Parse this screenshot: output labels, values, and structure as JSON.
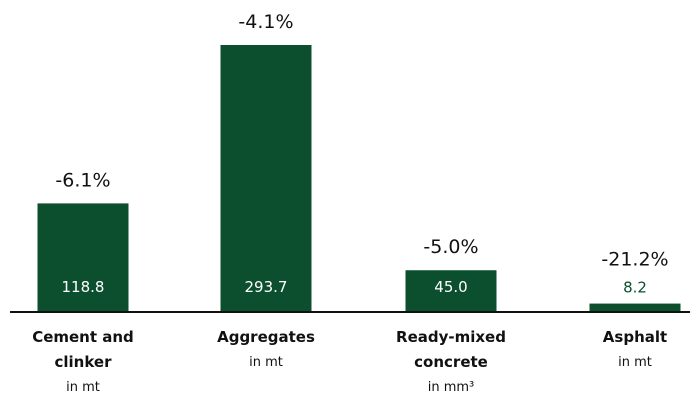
{
  "chart_data": {
    "type": "bar",
    "categories": [
      {
        "name_lines": [
          "Cement and",
          "clinker"
        ],
        "unit": "in mt"
      },
      {
        "name_lines": [
          "Aggregates"
        ],
        "unit": "in mt"
      },
      {
        "name_lines": [
          "Ready-mixed",
          "concrete"
        ],
        "unit": "in mm³"
      },
      {
        "name_lines": [
          "Asphalt"
        ],
        "unit": "in mt"
      }
    ],
    "values": [
      118.8,
      293.7,
      45.0,
      8.2
    ],
    "value_labels": [
      "118.8",
      "293.7",
      "45.0",
      "8.2"
    ],
    "changes": [
      "-6.1%",
      "-4.1%",
      "-5.0%",
      "-21.2%"
    ],
    "ylim": [
      0,
      300
    ],
    "grid": false,
    "colors": {
      "bar": "#0b4f2e",
      "label_on_bar": "#ffffff",
      "label_above_bar": "#0b4f2e",
      "baseline": "#111111",
      "text": "#111111"
    }
  }
}
